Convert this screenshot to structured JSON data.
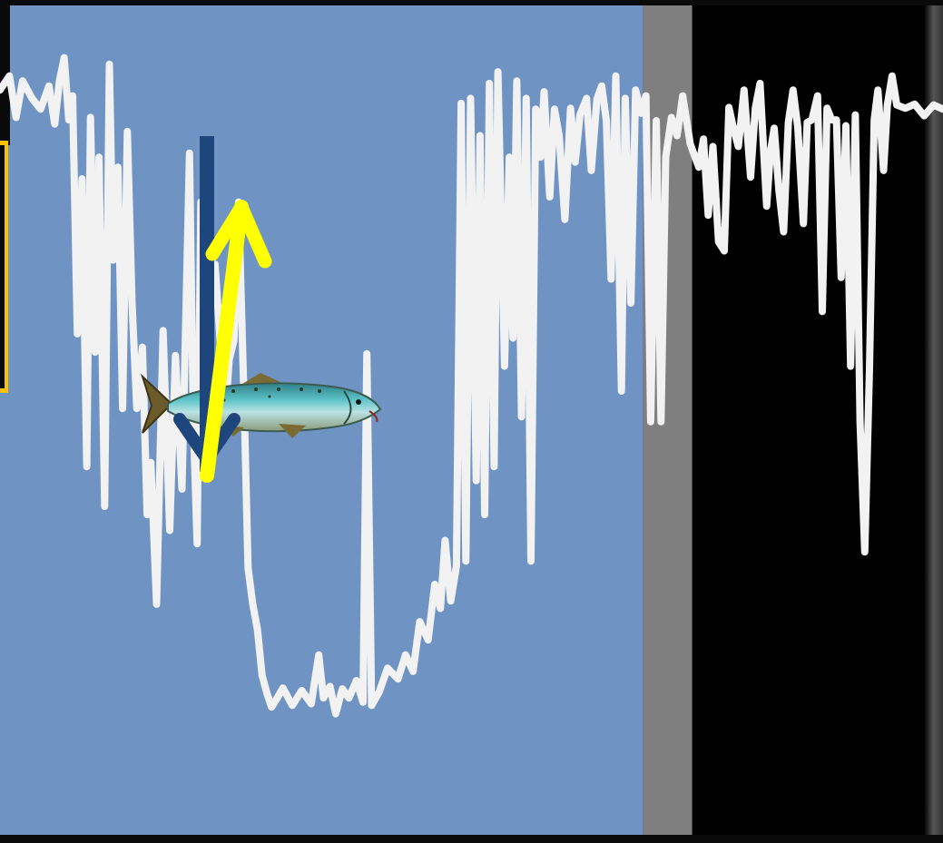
{
  "colors": {
    "day_background": "#6f94c3",
    "twilight_background": "#7f7f7f",
    "night_background": "#000000",
    "depth_trace": "#f2f2f2",
    "descent_arrow": "#1f467c",
    "ascent_arrow": "#ffff00",
    "callout_border": "#ffc000",
    "frame": "#0a0a0a"
  },
  "chart_data": {
    "type": "line",
    "title": "",
    "xlabel": "",
    "ylabel": "",
    "y_inverted": true,
    "x_range": [
      0,
      100
    ],
    "y_range": [
      0,
      100
    ],
    "background_bands": [
      {
        "name": "day",
        "from": 0,
        "to": 68.2,
        "color": "#6f94c3"
      },
      {
        "name": "twilight",
        "from": 68.2,
        "to": 73.4,
        "color": "#7f7f7f"
      },
      {
        "name": "night",
        "from": 73.4,
        "to": 100,
        "color": "#000000"
      }
    ],
    "series": [
      {
        "line_color": "#f2f2f2",
        "points": [
          [
            0.0,
            10.2
          ],
          [
            1.0,
            8.5
          ],
          [
            1.7,
            13.5
          ],
          [
            2.4,
            9.1
          ],
          [
            3.4,
            11.2
          ],
          [
            4.3,
            12.5
          ],
          [
            5.2,
            9.7
          ],
          [
            5.8,
            14.3
          ],
          [
            6.3,
            9.1
          ],
          [
            6.8,
            6.3
          ],
          [
            7.3,
            13.8
          ],
          [
            7.7,
            10.9
          ],
          [
            8.2,
            39.6
          ],
          [
            8.7,
            20.9
          ],
          [
            9.2,
            55.6
          ],
          [
            9.6,
            13.5
          ],
          [
            10.1,
            41.8
          ],
          [
            10.5,
            18.3
          ],
          [
            11.1,
            60.4
          ],
          [
            11.6,
            7.1
          ],
          [
            12.0,
            30.7
          ],
          [
            12.5,
            19.5
          ],
          [
            13.0,
            48.6
          ],
          [
            13.5,
            15.2
          ],
          [
            14.0,
            35.9
          ],
          [
            14.5,
            48.6
          ],
          [
            15.1,
            41.2
          ],
          [
            15.6,
            61.4
          ],
          [
            16.0,
            55.1
          ],
          [
            16.6,
            72.2
          ],
          [
            17.3,
            39.2
          ],
          [
            18.0,
            63.3
          ],
          [
            18.6,
            42.2
          ],
          [
            19.3,
            58.3
          ],
          [
            20.1,
            17.8
          ],
          [
            20.5,
            50.2
          ],
          [
            20.9,
            64.9
          ],
          [
            21.3,
            23.7
          ],
          [
            21.8,
            49.6
          ],
          [
            22.3,
            34.8
          ],
          [
            22.8,
            31.2
          ],
          [
            23.3,
            39.7
          ],
          [
            23.8,
            51.0
          ],
          [
            24.3,
            42.7
          ],
          [
            24.8,
            40.4
          ],
          [
            25.3,
            23.7
          ],
          [
            25.9,
            48.6
          ],
          [
            26.3,
            67.8
          ],
          [
            26.8,
            72.2
          ],
          [
            27.3,
            75.2
          ],
          [
            27.8,
            80.8
          ],
          [
            28.3,
            82.9
          ],
          [
            28.8,
            84.6
          ],
          [
            29.3,
            83.7
          ],
          [
            30.0,
            82.3
          ],
          [
            31.0,
            84.4
          ],
          [
            32.0,
            82.6
          ],
          [
            33.0,
            84.2
          ],
          [
            33.8,
            78.3
          ],
          [
            34.3,
            83.5
          ],
          [
            35.0,
            82.1
          ],
          [
            35.6,
            85.4
          ],
          [
            36.3,
            82.4
          ],
          [
            37.0,
            83.5
          ],
          [
            37.8,
            81.4
          ],
          [
            38.5,
            84.0
          ],
          [
            38.9,
            42.0
          ],
          [
            39.4,
            84.4
          ],
          [
            40.2,
            82.8
          ],
          [
            41.1,
            79.9
          ],
          [
            42.2,
            81.2
          ],
          [
            43.0,
            78.3
          ],
          [
            43.8,
            80.3
          ],
          [
            44.5,
            74.3
          ],
          [
            45.4,
            76.5
          ],
          [
            46.1,
            69.8
          ],
          [
            46.7,
            72.7
          ],
          [
            47.2,
            64.5
          ],
          [
            47.8,
            71.8
          ],
          [
            48.4,
            67.6
          ],
          [
            48.9,
            11.8
          ],
          [
            49.4,
            67.0
          ],
          [
            49.9,
            11.2
          ],
          [
            50.5,
            57.3
          ],
          [
            50.9,
            15.7
          ],
          [
            51.4,
            61.4
          ],
          [
            51.9,
            9.4
          ],
          [
            52.4,
            55.6
          ],
          [
            52.8,
            8.0
          ],
          [
            53.5,
            43.5
          ],
          [
            54.0,
            18.3
          ],
          [
            54.4,
            40.1
          ],
          [
            54.8,
            9.1
          ],
          [
            55.3,
            49.6
          ],
          [
            55.8,
            11.2
          ],
          [
            56.3,
            67.0
          ],
          [
            56.8,
            12.5
          ],
          [
            57.3,
            18.3
          ],
          [
            57.7,
            10.4
          ],
          [
            58.3,
            23.1
          ],
          [
            58.8,
            12.5
          ],
          [
            59.3,
            15.7
          ],
          [
            59.9,
            25.8
          ],
          [
            60.5,
            12.4
          ],
          [
            61.0,
            18.9
          ],
          [
            61.5,
            13.2
          ],
          [
            62.2,
            11.2
          ],
          [
            62.7,
            19.9
          ],
          [
            63.3,
            11.3
          ],
          [
            63.8,
            9.7
          ],
          [
            64.3,
            13.9
          ],
          [
            64.8,
            33.0
          ],
          [
            65.3,
            8.5
          ],
          [
            65.9,
            46.5
          ],
          [
            66.3,
            11.2
          ],
          [
            66.9,
            35.9
          ],
          [
            67.4,
            10.2
          ],
          [
            68.0,
            13.0
          ],
          [
            68.5,
            10.9
          ],
          [
            69.0,
            50.2
          ],
          [
            69.6,
            13.9
          ],
          [
            70.1,
            50.2
          ],
          [
            70.6,
            18.3
          ],
          [
            71.2,
            13.5
          ],
          [
            71.8,
            15.7
          ],
          [
            72.4,
            10.9
          ],
          [
            73.2,
            16.7
          ],
          [
            74.1,
            19.5
          ],
          [
            74.6,
            16.1
          ],
          [
            75.1,
            25.3
          ],
          [
            75.6,
            17.0
          ],
          [
            76.2,
            28.5
          ],
          [
            76.8,
            29.6
          ],
          [
            77.3,
            12.3
          ],
          [
            77.8,
            14.9
          ],
          [
            78.3,
            17.0
          ],
          [
            78.9,
            10.2
          ],
          [
            79.6,
            20.7
          ],
          [
            80.1,
            12.4
          ],
          [
            80.6,
            9.4
          ],
          [
            81.3,
            24.2
          ],
          [
            81.7,
            17.6
          ],
          [
            82.1,
            14.8
          ],
          [
            82.6,
            22.3
          ],
          [
            83.1,
            27.3
          ],
          [
            83.6,
            14.1
          ],
          [
            84.1,
            10.2
          ],
          [
            84.6,
            14.7
          ],
          [
            85.2,
            26.3
          ],
          [
            85.6,
            14.1
          ],
          [
            86.1,
            13.8
          ],
          [
            86.7,
            10.9
          ],
          [
            87.2,
            36.9
          ],
          [
            87.7,
            12.4
          ],
          [
            88.2,
            13.8
          ],
          [
            88.7,
            13.8
          ],
          [
            89.2,
            32.8
          ],
          [
            89.7,
            14.5
          ],
          [
            90.2,
            43.5
          ],
          [
            90.7,
            13.2
          ],
          [
            91.2,
            50.2
          ],
          [
            91.7,
            65.9
          ],
          [
            92.2,
            43.8
          ],
          [
            92.7,
            13.8
          ],
          [
            93.1,
            10.2
          ],
          [
            93.7,
            19.9
          ],
          [
            94.1,
            12.0
          ],
          [
            94.6,
            8.5
          ],
          [
            95.1,
            12.0
          ],
          [
            96.0,
            12.4
          ],
          [
            97.0,
            11.9
          ],
          [
            98.0,
            13.3
          ],
          [
            99.0,
            12.0
          ],
          [
            100.0,
            12.5
          ]
        ]
      }
    ],
    "annotations": [
      {
        "kind": "arrow",
        "name": "descent",
        "direction": "down",
        "color": "#1f467c"
      },
      {
        "kind": "arrow",
        "name": "ascent",
        "direction": "up",
        "color": "#ffff00"
      },
      {
        "kind": "image",
        "name": "salmon"
      }
    ]
  }
}
